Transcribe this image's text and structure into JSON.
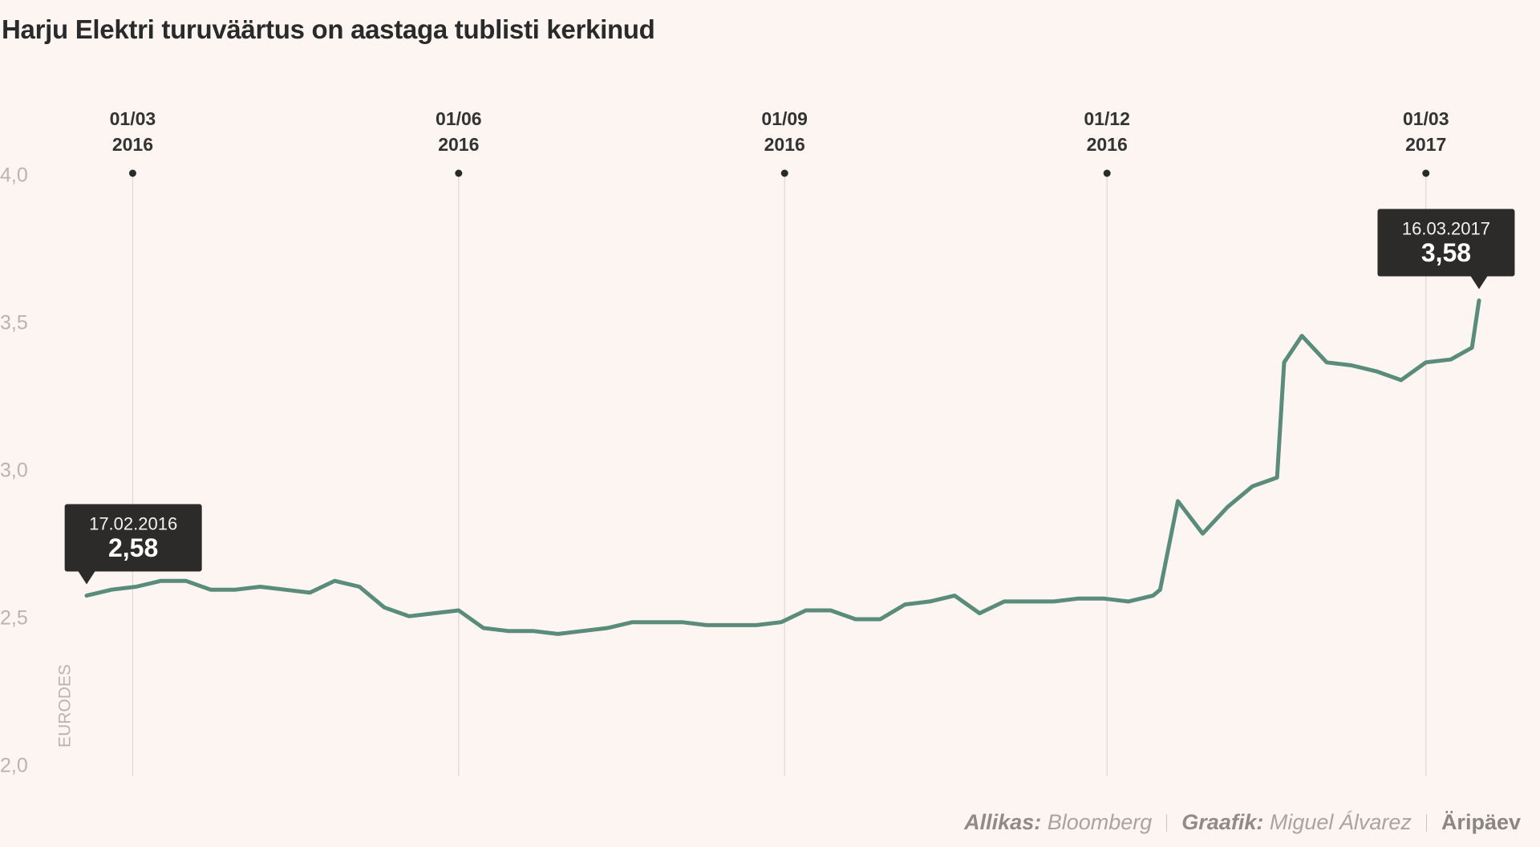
{
  "chart_data": {
    "type": "line",
    "title": "Harju Elektri turuväärtus on aastaga tublisti kerkinud",
    "y_label": "EURODES",
    "x": [
      "2016-02-17",
      "2016-02-24",
      "2016-03-02",
      "2016-03-09",
      "2016-03-16",
      "2016-03-23",
      "2016-03-30",
      "2016-04-06",
      "2016-04-13",
      "2016-04-20",
      "2016-04-27",
      "2016-05-04",
      "2016-05-11",
      "2016-05-18",
      "2016-05-25",
      "2016-06-01",
      "2016-06-08",
      "2016-06-15",
      "2016-06-22",
      "2016-06-29",
      "2016-07-06",
      "2016-07-13",
      "2016-07-20",
      "2016-07-27",
      "2016-08-03",
      "2016-08-10",
      "2016-08-17",
      "2016-08-24",
      "2016-08-31",
      "2016-09-07",
      "2016-09-14",
      "2016-09-21",
      "2016-09-28",
      "2016-10-05",
      "2016-10-12",
      "2016-10-19",
      "2016-10-26",
      "2016-11-02",
      "2016-11-09",
      "2016-11-16",
      "2016-11-23",
      "2016-11-30",
      "2016-12-07",
      "2016-12-14",
      "2016-12-16",
      "2016-12-21",
      "2016-12-28",
      "2017-01-04",
      "2017-01-11",
      "2017-01-18",
      "2017-01-20",
      "2017-01-25",
      "2017-02-01",
      "2017-02-08",
      "2017-02-15",
      "2017-02-22",
      "2017-03-01",
      "2017-03-08",
      "2017-03-14",
      "2017-03-16"
    ],
    "series": [
      {
        "name": "Harju Elekter",
        "color": "#5a8c7b",
        "values": [
          2.58,
          2.6,
          2.61,
          2.63,
          2.63,
          2.6,
          2.6,
          2.61,
          2.6,
          2.59,
          2.63,
          2.61,
          2.54,
          2.51,
          2.52,
          2.53,
          2.47,
          2.46,
          2.46,
          2.45,
          2.46,
          2.47,
          2.49,
          2.49,
          2.49,
          2.48,
          2.48,
          2.48,
          2.49,
          2.53,
          2.53,
          2.5,
          2.5,
          2.55,
          2.56,
          2.58,
          2.52,
          2.56,
          2.56,
          2.56,
          2.57,
          2.57,
          2.56,
          2.58,
          2.6,
          2.9,
          2.79,
          2.88,
          2.95,
          2.98,
          3.37,
          3.46,
          3.37,
          3.36,
          3.34,
          3.31,
          3.37,
          3.38,
          3.42,
          3.58
        ]
      }
    ],
    "xlim": [
      "2016-02-17",
      "2017-03-16"
    ],
    "xticks": [
      {
        "value": "2016-03-01",
        "label": [
          "01/03",
          "2016"
        ]
      },
      {
        "value": "2016-06-01",
        "label": [
          "01/06",
          "2016"
        ]
      },
      {
        "value": "2016-09-01",
        "label": [
          "01/09",
          "2016"
        ]
      },
      {
        "value": "2016-12-01",
        "label": [
          "01/12",
          "2016"
        ]
      },
      {
        "value": "2017-03-01",
        "label": [
          "01/03",
          "2017"
        ]
      }
    ],
    "ylim": [
      2,
      4
    ],
    "yticks": [
      {
        "value": 2,
        "label": "2,0"
      },
      {
        "value": 2.5,
        "label": "2,5"
      },
      {
        "value": 3,
        "label": "3,0"
      },
      {
        "value": 3.5,
        "label": "3,5"
      },
      {
        "value": 4,
        "label": "4,0"
      }
    ],
    "annotations": [
      {
        "x": "2016-02-17",
        "date_label": "17.02.2016",
        "value": 2.58,
        "label": "2,58"
      },
      {
        "x": "2017-03-16",
        "date_label": "16.03.2017",
        "value": 3.58,
        "label": "3,58"
      }
    ],
    "footer": {
      "source_label": "Allikas:",
      "source": "Bloomberg",
      "author_label": "Graafik:",
      "author": "Miguel Álvarez",
      "publisher": "Äripäev"
    }
  }
}
